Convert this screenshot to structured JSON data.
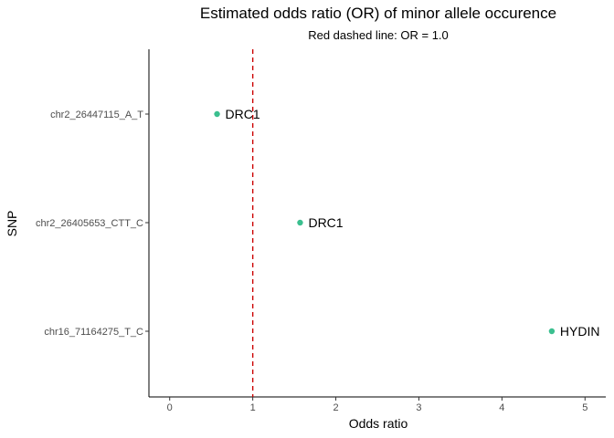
{
  "chart_data": {
    "type": "scatter",
    "title": "Estimated odds ratio (OR) of minor allele occurence",
    "subtitle": "Red dashed line: OR = 1.0",
    "xlabel": "Odds ratio",
    "ylabel": "SNP",
    "xlim": [
      -0.25,
      5.25
    ],
    "x_ticks": [
      "0",
      "1",
      "2",
      "3",
      "4",
      "5"
    ],
    "categories": [
      "chr2_26447115_A_T",
      "chr2_26405653_CTT_C",
      "chr16_71164275_T_C"
    ],
    "points": [
      {
        "snp": "chr2_26447115_A_T",
        "x": 0.57,
        "label": "DRC1"
      },
      {
        "snp": "chr2_26405653_CTT_C",
        "x": 1.57,
        "label": "DRC1"
      },
      {
        "snp": "chr16_71164275_T_C",
        "x": 4.6,
        "label": "HYDIN"
      }
    ],
    "reference_line": {
      "x": 1.0,
      "color": "#cc0000",
      "style": "dashed"
    },
    "point_color": "#3bbf8f",
    "grid": false,
    "legend": "none"
  }
}
